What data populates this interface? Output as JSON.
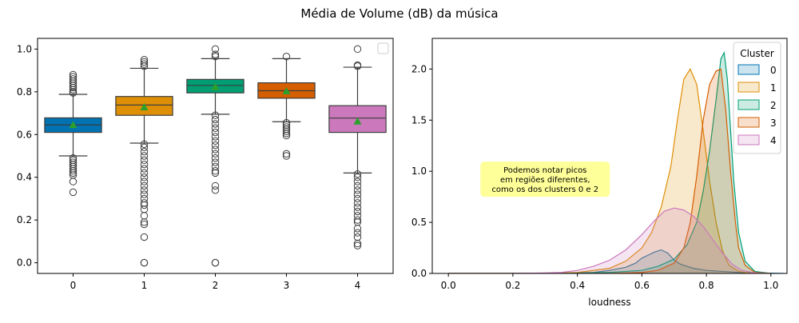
{
  "figure": {
    "title": "Média de Volume (dB) da música"
  },
  "chart_data": [
    {
      "type": "box",
      "xlabel": "",
      "ylabel": "",
      "categories": [
        "0",
        "1",
        "2",
        "3",
        "4"
      ],
      "ylim": [
        -0.05,
        1.05
      ],
      "yticks": [
        0.0,
        0.2,
        0.4,
        0.6,
        0.8,
        1.0
      ],
      "ytick_labels": [
        "0.0",
        "0.2",
        "0.4",
        "0.6",
        "0.8",
        "1.0"
      ],
      "grid": false,
      "legend": "empty, top-right",
      "boxes": [
        {
          "category": "0",
          "color": "#0173b2",
          "q1": 0.61,
          "median": 0.645,
          "q3": 0.678,
          "whisker_low": 0.5,
          "whisker_high": 0.788,
          "mean": 0.645,
          "outliers": [
            0.88,
            0.87,
            0.86,
            0.85,
            0.84,
            0.83,
            0.82,
            0.81,
            0.8,
            0.795,
            0.49,
            0.48,
            0.47,
            0.46,
            0.45,
            0.44,
            0.43,
            0.42,
            0.41,
            0.38,
            0.33
          ]
        },
        {
          "category": "1",
          "color": "#de8f05",
          "q1": 0.69,
          "median": 0.738,
          "q3": 0.778,
          "whisker_low": 0.56,
          "whisker_high": 0.91,
          "mean": 0.728,
          "outliers": [
            0.95,
            0.94,
            0.93,
            0.92,
            0.555,
            0.54,
            0.52,
            0.5,
            0.48,
            0.46,
            0.44,
            0.42,
            0.4,
            0.38,
            0.36,
            0.34,
            0.32,
            0.3,
            0.28,
            0.27,
            0.25,
            0.22,
            0.19,
            0.18,
            0.12,
            0.0,
            0.0
          ]
        },
        {
          "category": "2",
          "color": "#029e73",
          "q1": 0.795,
          "median": 0.83,
          "q3": 0.858,
          "whisker_low": 0.695,
          "whisker_high": 0.955,
          "mean": 0.823,
          "outliers": [
            1.0,
            0.975,
            0.965,
            0.69,
            0.67,
            0.65,
            0.63,
            0.61,
            0.59,
            0.57,
            0.55,
            0.53,
            0.51,
            0.49,
            0.47,
            0.45,
            0.43,
            0.42,
            0.36,
            0.34,
            0.0,
            0.0
          ]
        },
        {
          "category": "3",
          "color": "#d55e00",
          "q1": 0.77,
          "median": 0.805,
          "q3": 0.842,
          "whisker_low": 0.66,
          "whisker_high": 0.955,
          "mean": 0.803,
          "outliers": [
            0.965,
            0.655,
            0.645,
            0.635,
            0.625,
            0.615,
            0.605,
            0.595,
            0.51,
            0.5
          ]
        },
        {
          "category": "4",
          "color": "#cc78bc",
          "q1": 0.61,
          "median": 0.677,
          "q3": 0.735,
          "whisker_low": 0.42,
          "whisker_high": 0.915,
          "mean": 0.662,
          "outliers": [
            1.0,
            0.925,
            0.92,
            0.415,
            0.4,
            0.38,
            0.36,
            0.34,
            0.32,
            0.3,
            0.28,
            0.26,
            0.24,
            0.22,
            0.2,
            0.19,
            0.16,
            0.14,
            0.12,
            0.09,
            0.08
          ]
        }
      ]
    },
    {
      "type": "area",
      "xlabel": "loudness",
      "ylabel": "",
      "xlim": [
        -0.05,
        1.05
      ],
      "ylim": [
        0,
        2.3
      ],
      "xticks": [
        0.0,
        0.2,
        0.4,
        0.6,
        0.8,
        1.0
      ],
      "xtick_labels": [
        "0.0",
        "0.2",
        "0.4",
        "0.6",
        "0.8",
        "1.0"
      ],
      "yticks": [
        0.0,
        0.5,
        1.0,
        1.5,
        2.0
      ],
      "ytick_labels": [
        "0.0",
        "0.5",
        "1.0",
        "1.5",
        "2.0"
      ],
      "grid": false,
      "legend": {
        "title": "Cluster",
        "placement": "top-right"
      },
      "annotation": {
        "lines": [
          "Podemos notar picos",
          "em regiões diferentes,",
          "como os dos clusters 0 e 2"
        ],
        "x": 0.3,
        "y": 1.0,
        "color": "#ffff99"
      },
      "series": [
        {
          "name": "0",
          "color": "#0173b2",
          "fill_opacity": 0.2,
          "x": [
            0.0,
            0.3,
            0.45,
            0.5,
            0.55,
            0.58,
            0.6,
            0.62,
            0.64,
            0.66,
            0.68,
            0.7,
            0.72,
            0.74,
            0.76,
            0.8,
            0.85,
            0.9,
            0.95,
            1.04
          ],
          "y": [
            0.0,
            0.0,
            0.01,
            0.03,
            0.06,
            0.1,
            0.15,
            0.18,
            0.21,
            0.23,
            0.2,
            0.13,
            0.09,
            0.07,
            0.05,
            0.03,
            0.02,
            0.01,
            0.005,
            0.0
          ]
        },
        {
          "name": "1",
          "color": "#de8f05",
          "fill_opacity": 0.2,
          "x": [
            0.0,
            0.3,
            0.4,
            0.5,
            0.55,
            0.6,
            0.63,
            0.66,
            0.69,
            0.71,
            0.73,
            0.75,
            0.77,
            0.79,
            0.81,
            0.83,
            0.85,
            0.87,
            0.9,
            0.93,
            1.0
          ],
          "y": [
            0.0,
            0.0,
            0.01,
            0.05,
            0.12,
            0.25,
            0.4,
            0.65,
            1.05,
            1.5,
            1.9,
            2.0,
            1.85,
            1.4,
            0.9,
            0.5,
            0.22,
            0.08,
            0.02,
            0.005,
            0.0
          ]
        },
        {
          "name": "2",
          "color": "#029e73",
          "fill_opacity": 0.2,
          "x": [
            0.0,
            0.35,
            0.5,
            0.6,
            0.65,
            0.7,
            0.74,
            0.77,
            0.79,
            0.81,
            0.83,
            0.845,
            0.855,
            0.865,
            0.875,
            0.885,
            0.9,
            0.92,
            0.95,
            1.0
          ],
          "y": [
            0.0,
            0.0,
            0.01,
            0.03,
            0.07,
            0.14,
            0.28,
            0.5,
            0.8,
            1.2,
            1.7,
            2.1,
            2.16,
            1.9,
            1.4,
            0.9,
            0.4,
            0.12,
            0.02,
            0.0
          ]
        },
        {
          "name": "3",
          "color": "#d55e00",
          "fill_opacity": 0.2,
          "x": [
            0.0,
            0.5,
            0.6,
            0.65,
            0.7,
            0.73,
            0.75,
            0.77,
            0.79,
            0.81,
            0.83,
            0.845,
            0.86,
            0.875,
            0.89,
            0.9,
            0.92,
            0.95,
            1.0
          ],
          "y": [
            0.0,
            0.0,
            0.01,
            0.03,
            0.1,
            0.25,
            0.5,
            0.95,
            1.5,
            1.85,
            1.98,
            2.0,
            1.6,
            1.0,
            0.5,
            0.25,
            0.08,
            0.01,
            0.0
          ]
        },
        {
          "name": "4",
          "color": "#cc78bc",
          "fill_opacity": 0.2,
          "x": [
            0.0,
            0.2,
            0.3,
            0.35,
            0.4,
            0.45,
            0.5,
            0.55,
            0.6,
            0.64,
            0.67,
            0.7,
            0.73,
            0.76,
            0.79,
            0.82,
            0.85,
            0.88,
            0.91,
            0.95,
            1.0
          ],
          "y": [
            0.0,
            0.0,
            0.005,
            0.01,
            0.03,
            0.07,
            0.13,
            0.23,
            0.38,
            0.52,
            0.61,
            0.64,
            0.62,
            0.56,
            0.46,
            0.33,
            0.2,
            0.09,
            0.03,
            0.005,
            0.0
          ]
        }
      ]
    }
  ]
}
